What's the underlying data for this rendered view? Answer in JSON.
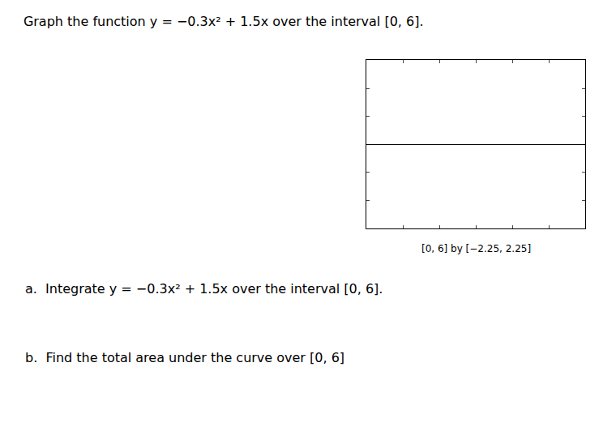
{
  "chart_data": {
    "type": "line",
    "title": "Graph the function y = −0.3x² + 1.5x over the interval [0, 6].",
    "annotations": [
      "[0, 6] by [−2.25, 2.25]",
      "a.  Integrate y = −0.3x² + 1.5x over the interval [0, 6].",
      "b.  Find the total area under the curve over [0, 6]"
    ],
    "xlim": [
      0,
      6
    ],
    "ylim": [
      -2.25,
      2.25
    ],
    "xticks": [
      1,
      2,
      3,
      4,
      5
    ],
    "yticks": [
      -1.5,
      -0.75,
      0.75,
      1.5
    ],
    "tick_labels": false,
    "grid": false
  }
}
